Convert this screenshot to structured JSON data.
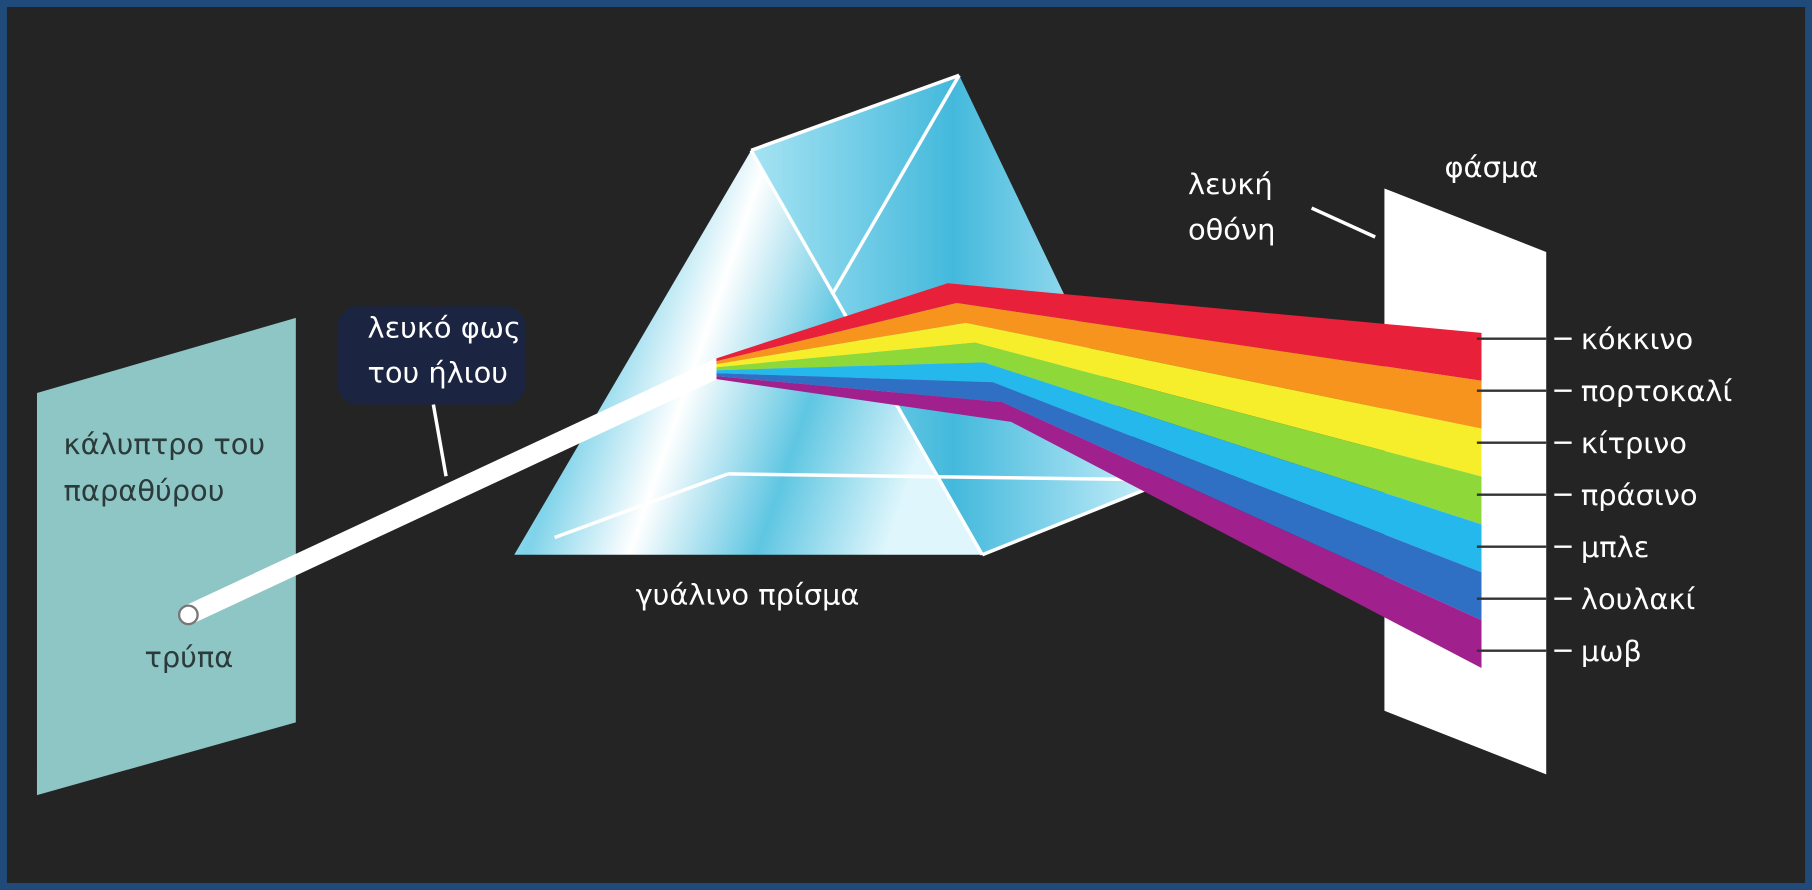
{
  "labels": {
    "window_cover": [
      "κάλυπτρο του",
      "παραθύρου"
    ],
    "hole": "τρύπα",
    "sunlight": [
      "λευκό φως",
      "του ήλιου"
    ],
    "prism": "γυάλινο πρίσμα",
    "screen": [
      "λευκή",
      "οθόνη"
    ],
    "spectrum": "φάσμα"
  },
  "colors": [
    "κόκκινο",
    "πορτοκαλί",
    "κίτρινο",
    "πράσινο",
    "μπλε",
    "λουλακί",
    "μωβ"
  ]
}
